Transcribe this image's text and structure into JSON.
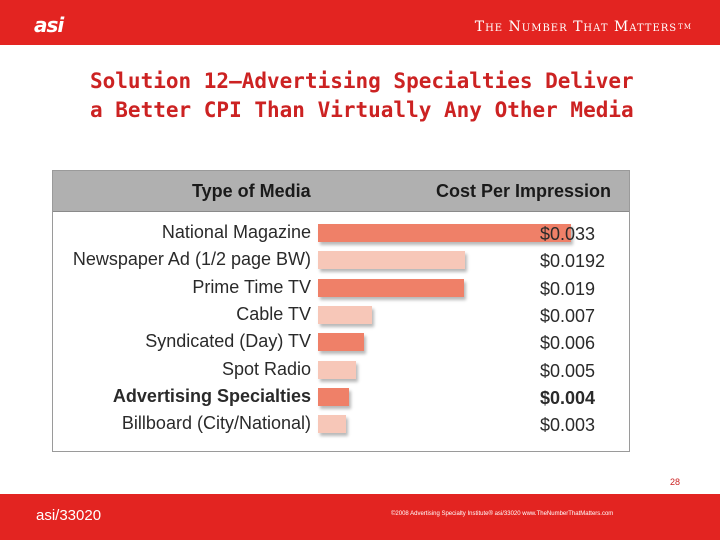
{
  "header": {
    "logo_text": "asi",
    "tagline": "The Number That Matters",
    "tm": "TM"
  },
  "slide": {
    "title": "Solution 12—Advertising Specialties Deliver a Better CPI Than Virtually Any Other Media",
    "page_number": "28"
  },
  "colors": {
    "brand_red": "#e32421",
    "bar_dark": "#ef8068",
    "bar_light": "#f7c7b8",
    "header_gray": "#b0b0b0"
  },
  "chart_data": {
    "type": "bar",
    "orientation": "horizontal",
    "column_headers": [
      "Type of Media",
      "Cost Per Impression"
    ],
    "categories": [
      "National Magazine",
      "Newspaper Ad (1/2 page BW)",
      "Prime Time TV",
      "Cable TV",
      "Syndicated (Day) TV",
      "Spot Radio",
      "Advertising Specialties",
      "Billboard (City/National)"
    ],
    "values": [
      0.033,
      0.0192,
      0.019,
      0.007,
      0.006,
      0.005,
      0.004,
      0.003
    ],
    "value_labels": [
      "$0.033",
      "$0.0192",
      "$0.019",
      "$0.007",
      "$0.006",
      "$0.005",
      "$0.004",
      "$0.003"
    ],
    "highlight_index": 6,
    "bar_color_pattern": [
      "dark",
      "light",
      "dark",
      "light",
      "dark",
      "light",
      "dark",
      "light"
    ],
    "grid": false,
    "legend": "none"
  },
  "footer": {
    "code": "asi/33020",
    "copyright": "©2008 Advertising Specialty Institute® asi/33020   www.TheNumberThatMatters.com"
  }
}
